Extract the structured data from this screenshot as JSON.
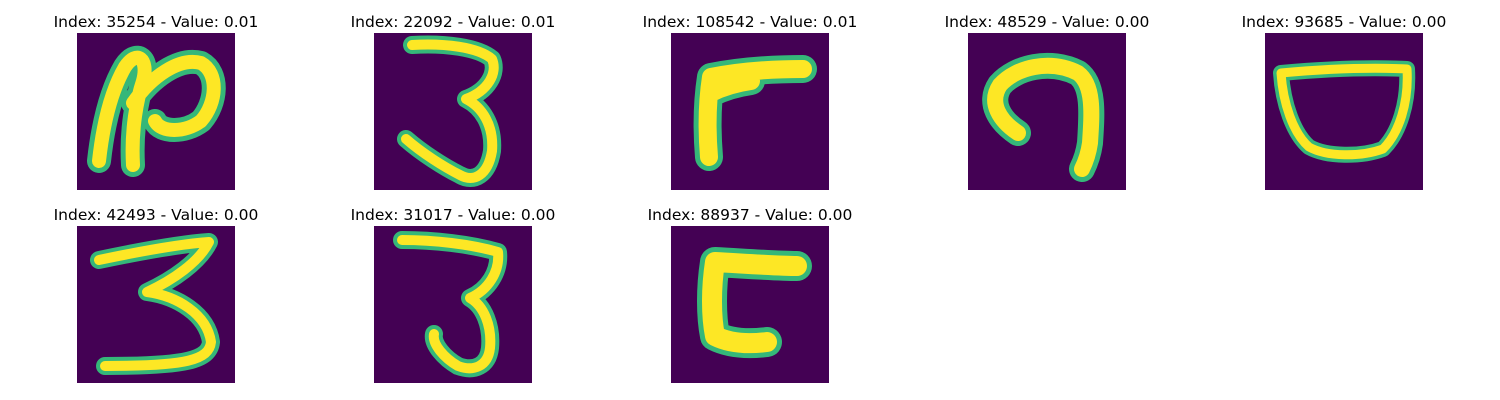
{
  "colors": {
    "background": "#440154",
    "stroke": "#fde725",
    "edge": "#35b779"
  },
  "panels": [
    {
      "title": "Index: 35254 - Value: 0.01",
      "glyph": "glyph-2-icon"
    },
    {
      "title": "Index: 22092 - Value: 0.01",
      "glyph": "glyph-3-icon"
    },
    {
      "title": "Index: 108542 - Value: 0.01",
      "glyph": "glyph-r-icon"
    },
    {
      "title": "Index: 48529 - Value: 0.00",
      "glyph": "glyph-n-icon"
    },
    {
      "title": "Index: 93685 - Value: 0.00",
      "glyph": "glyph-bowl-icon"
    },
    {
      "title": "Index: 42493 - Value: 0.00",
      "glyph": "glyph-3-icon"
    },
    {
      "title": "Index: 31017 - Value: 0.00",
      "glyph": "glyph-3-icon"
    },
    {
      "title": "Index: 88937 - Value: 0.00",
      "glyph": "glyph-c-icon"
    }
  ]
}
